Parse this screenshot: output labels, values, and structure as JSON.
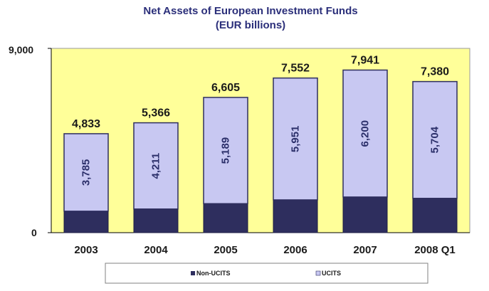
{
  "chart_data": {
    "type": "bar",
    "stacked": true,
    "title": "Net Assets of European Investment Funds",
    "subtitle": "(EUR billions)",
    "categories": [
      "2003",
      "2004",
      "2005",
      "2006",
      "2007",
      "2008 Q1"
    ],
    "ylim": [
      0,
      9000
    ],
    "yticks": [
      "0",
      "9,000"
    ],
    "series": [
      {
        "name": "Non-UCITS",
        "values": [
          1048,
          1155,
          1416,
          1601,
          1741,
          1676
        ],
        "color": "#2e2e5e"
      },
      {
        "name": "UCITS",
        "values": [
          3785,
          4211,
          5189,
          5951,
          6200,
          5704
        ],
        "color": "#c8c8f2"
      }
    ],
    "ucits_labels": [
      "3,785",
      "4,211",
      "5,189",
      "5,951",
      "6,200",
      "5,704"
    ],
    "totals": [
      "4,833",
      "5,366",
      "6,605",
      "7,552",
      "7,941",
      "7,380"
    ],
    "legend": [
      "Non-UCITS",
      "UCITS"
    ],
    "plot_background": "#ffff99"
  }
}
